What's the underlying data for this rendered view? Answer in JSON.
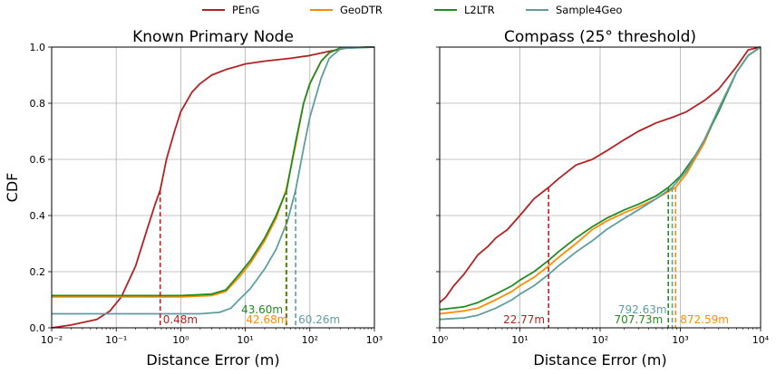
{
  "legend": [
    {
      "label": "PEnG",
      "color": "#b22222"
    },
    {
      "label": "GeoDTR",
      "color": "#ff8c00"
    },
    {
      "label": "L2LTR",
      "color": "#228b22"
    },
    {
      "label": "Sample4Geo",
      "color": "#5f9ea0"
    }
  ],
  "chart_data": [
    {
      "type": "line",
      "title": "Known Primary Node",
      "xlabel": "Distance Error (m)",
      "ylabel": "CDF",
      "xscale": "log",
      "xlim": [
        0.01,
        1000
      ],
      "ylim": [
        0,
        1
      ],
      "xticks": [
        "10⁻²",
        "10⁻¹",
        "10⁰",
        "10¹",
        "10²",
        "10³"
      ],
      "yticks": [
        "0.0",
        "0.2",
        "0.4",
        "0.6",
        "0.8",
        "1.0"
      ],
      "grid": true,
      "series": [
        {
          "name": "PEnG",
          "color": "#b22222",
          "x": [
            0.01,
            0.02,
            0.05,
            0.08,
            0.12,
            0.2,
            0.3,
            0.4,
            0.48,
            0.6,
            0.8,
            1.0,
            1.5,
            2,
            3,
            5,
            10,
            20,
            50,
            100,
            200,
            400,
            1000
          ],
          "y": [
            0.0,
            0.01,
            0.03,
            0.06,
            0.11,
            0.22,
            0.35,
            0.44,
            0.49,
            0.6,
            0.7,
            0.77,
            0.84,
            0.87,
            0.9,
            0.92,
            0.94,
            0.95,
            0.96,
            0.97,
            0.985,
            0.998,
            1.0
          ]
        },
        {
          "name": "GeoDTR",
          "color": "#ff8c00",
          "x": [
            0.01,
            1,
            3,
            5,
            8,
            12,
            20,
            30,
            42.68,
            60,
            80,
            100,
            150,
            200,
            300,
            1000
          ],
          "y": [
            0.11,
            0.11,
            0.115,
            0.13,
            0.18,
            0.23,
            0.31,
            0.39,
            0.49,
            0.65,
            0.8,
            0.87,
            0.95,
            0.98,
            0.997,
            1.0
          ]
        },
        {
          "name": "L2LTR",
          "color": "#228b22",
          "x": [
            0.01,
            1,
            3,
            5,
            8,
            12,
            20,
            30,
            43.6,
            60,
            80,
            100,
            150,
            200,
            300,
            1000
          ],
          "y": [
            0.115,
            0.115,
            0.12,
            0.135,
            0.19,
            0.24,
            0.32,
            0.4,
            0.49,
            0.66,
            0.8,
            0.87,
            0.95,
            0.98,
            0.997,
            1.0
          ]
        },
        {
          "name": "Sample4Geo",
          "color": "#5f9ea0",
          "x": [
            0.01,
            2,
            4,
            6,
            8,
            12,
            20,
            30,
            45,
            60.26,
            80,
            100,
            150,
            200,
            300,
            1000
          ],
          "y": [
            0.05,
            0.05,
            0.055,
            0.07,
            0.1,
            0.14,
            0.21,
            0.28,
            0.38,
            0.49,
            0.64,
            0.75,
            0.89,
            0.96,
            0.995,
            1.0
          ]
        }
      ],
      "annotations": [
        {
          "text": "0.48m",
          "x": 0.48,
          "y": 0.49,
          "color": "#b22222"
        },
        {
          "text": "42.68m",
          "x": 42.68,
          "y": 0.49,
          "color": "#ff8c00"
        },
        {
          "text": "43.60m",
          "x": 43.6,
          "y": 0.49,
          "color": "#228b22"
        },
        {
          "text": "60.26m",
          "x": 60.26,
          "y": 0.49,
          "color": "#5f9ea0"
        }
      ]
    },
    {
      "type": "line",
      "title": "Compass (25° threshold)",
      "xlabel": "Distance Error (m)",
      "xscale": "log",
      "xlim": [
        1,
        10000
      ],
      "ylim": [
        0,
        1
      ],
      "xticks": [
        "10⁰",
        "10¹",
        "10²",
        "10³",
        "10⁴"
      ],
      "grid": true,
      "series": [
        {
          "name": "PEnG",
          "color": "#b22222",
          "x": [
            1,
            1.2,
            1.5,
            2,
            3,
            4,
            5,
            7,
            10,
            15,
            22.77,
            30,
            50,
            80,
            120,
            200,
            300,
            500,
            800,
            1200,
            2000,
            3000,
            5000,
            7000,
            10000
          ],
          "y": [
            0.09,
            0.11,
            0.15,
            0.19,
            0.26,
            0.29,
            0.32,
            0.35,
            0.4,
            0.46,
            0.5,
            0.53,
            0.58,
            0.6,
            0.63,
            0.67,
            0.7,
            0.73,
            0.75,
            0.77,
            0.81,
            0.85,
            0.93,
            0.99,
            1.0
          ]
        },
        {
          "name": "GeoDTR",
          "color": "#ff8c00",
          "x": [
            1,
            2,
            3,
            5,
            8,
            10,
            15,
            22.77,
            30,
            50,
            80,
            120,
            200,
            300,
            500,
            872.59,
            1200,
            2000,
            3000,
            5000,
            7000,
            10000
          ],
          "y": [
            0.05,
            0.06,
            0.07,
            0.1,
            0.13,
            0.15,
            0.18,
            0.22,
            0.25,
            0.3,
            0.35,
            0.38,
            0.41,
            0.43,
            0.46,
            0.5,
            0.55,
            0.66,
            0.78,
            0.91,
            0.97,
            1.0
          ]
        },
        {
          "name": "L2LTR",
          "color": "#228b22",
          "x": [
            1,
            2,
            3,
            5,
            8,
            10,
            15,
            22.77,
            30,
            50,
            80,
            120,
            200,
            300,
            500,
            707.73,
            1000,
            1500,
            2000,
            3000,
            5000,
            7000,
            10000
          ],
          "y": [
            0.065,
            0.075,
            0.09,
            0.12,
            0.15,
            0.17,
            0.2,
            0.24,
            0.27,
            0.32,
            0.36,
            0.39,
            0.42,
            0.44,
            0.47,
            0.5,
            0.54,
            0.61,
            0.67,
            0.77,
            0.91,
            0.97,
            1.0
          ]
        },
        {
          "name": "Sample4Geo",
          "color": "#5f9ea0",
          "x": [
            1,
            2,
            3,
            5,
            8,
            10,
            15,
            22.77,
            30,
            50,
            80,
            120,
            200,
            300,
            500,
            792.63,
            1200,
            2000,
            3000,
            5000,
            7000,
            10000
          ],
          "y": [
            0.03,
            0.035,
            0.045,
            0.07,
            0.1,
            0.12,
            0.15,
            0.19,
            0.22,
            0.27,
            0.31,
            0.35,
            0.39,
            0.42,
            0.46,
            0.5,
            0.56,
            0.67,
            0.78,
            0.91,
            0.97,
            1.0
          ]
        }
      ],
      "annotations": [
        {
          "text": "22.77m",
          "x": 22.77,
          "y": 0.5,
          "color": "#b22222"
        },
        {
          "text": "792.63m",
          "x": 792.63,
          "y": 0.5,
          "color": "#5f9ea0"
        },
        {
          "text": "707.73m",
          "x": 707.73,
          "y": 0.5,
          "color": "#228b22"
        },
        {
          "text": "872.59m",
          "x": 872.59,
          "y": 0.5,
          "color": "#ff8c00"
        }
      ]
    }
  ]
}
